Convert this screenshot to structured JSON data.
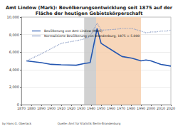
{
  "chart_data": {
    "type": "line",
    "title": "Amt Lindow (Mark): Bevölkerungsentwicklung seit 1875 auf der\nFläche der heutigen Gebietskörperschaft",
    "x": [
      1875,
      1890,
      1900,
      1910,
      1925,
      1933,
      1939,
      1946,
      1950,
      1964,
      1971,
      1981,
      1990,
      1995,
      2000,
      2005,
      2010,
      2015,
      2020
    ],
    "series": [
      {
        "name": "Bevölkerung von Amt Lindow (Mark)",
        "color": "#2456b0",
        "line_style": "solid",
        "values": [
          5000,
          4800,
          4600,
          4550,
          4500,
          4700,
          4800,
          8700,
          7000,
          6000,
          5500,
          5300,
          5000,
          5100,
          5000,
          4800,
          4600,
          4500,
          4400
        ]
      },
      {
        "name": "Normalisierte Bevölkerung von Brandenburg, 1875 = 5.000",
        "color": "#8a9cc4",
        "line_style": "dotted",
        "values": [
          5000,
          5800,
          6400,
          7000,
          7300,
          7500,
          7800,
          9300,
          8500,
          8600,
          8700,
          8700,
          8400,
          8200,
          8300,
          8300,
          8400,
          8400,
          8500
        ]
      }
    ],
    "shaded_periods": [
      {
        "from": 1933,
        "to": 1945,
        "color": "#c9c9c9"
      },
      {
        "from": 1945,
        "to": 1990,
        "color": "#f6cfae"
      }
    ],
    "xlim": [
      1870,
      2020
    ],
    "xticks": [
      1870,
      1880,
      1890,
      1900,
      1910,
      1920,
      1930,
      1940,
      1950,
      1960,
      1970,
      1980,
      1990,
      2000,
      2010,
      2020
    ],
    "ylim": [
      0,
      10000
    ],
    "yticks": [
      0,
      {
        "value": 2000,
        "label": "2,000"
      },
      {
        "value": 4000,
        "label": "4,000"
      },
      {
        "value": 6000,
        "label": "6,000"
      },
      {
        "value": 8000,
        "label": "8,000"
      },
      {
        "value": 10000,
        "label": "10,000"
      }
    ],
    "grid": true,
    "legend": "top-left",
    "annotations": [
      "by Hans G. Oberlack",
      "Quelle: Amt für Statistik Berlin-Brandenburg"
    ]
  }
}
